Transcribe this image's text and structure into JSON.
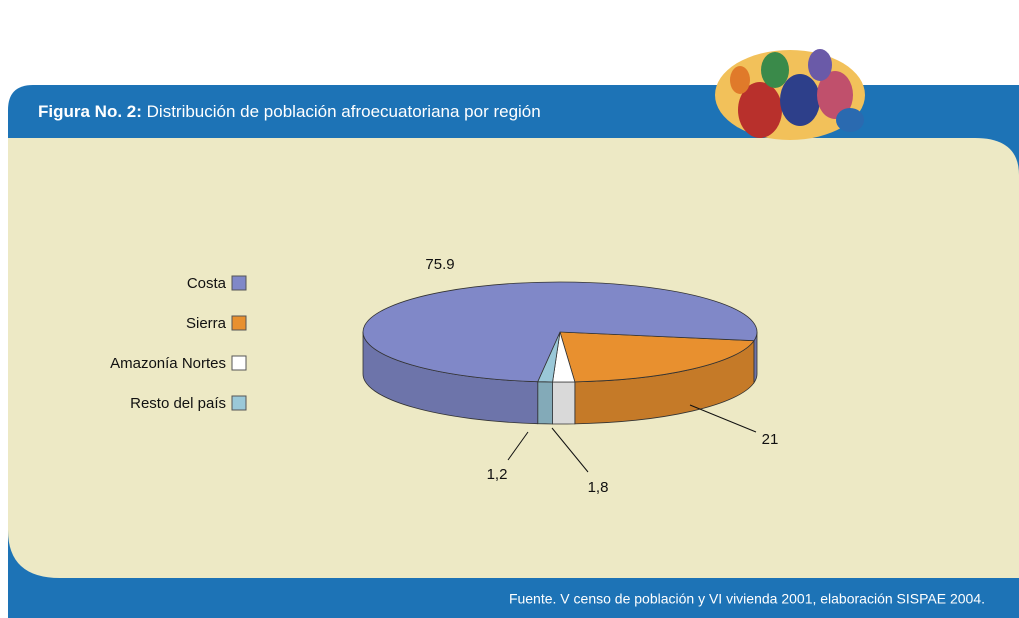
{
  "chart_data": {
    "type": "pie3d",
    "title_label": "Figura No. 2:",
    "title": "Distribución de población afroecuatoriana por región",
    "source": "Fuente. V censo de población y VI vivienda 2001, elaboración SISPAE 2004.",
    "categories": [
      "Costa",
      "Sierra",
      "Amazonía Nortes",
      "Resto del país"
    ],
    "values": [
      75.9,
      21,
      1.8,
      1.2
    ],
    "value_labels": [
      "75.9",
      "21",
      "1,8",
      "1,2"
    ],
    "colors": [
      "#8088c8",
      "#e8902f",
      "#ffffff",
      "#9ac8d8"
    ]
  }
}
